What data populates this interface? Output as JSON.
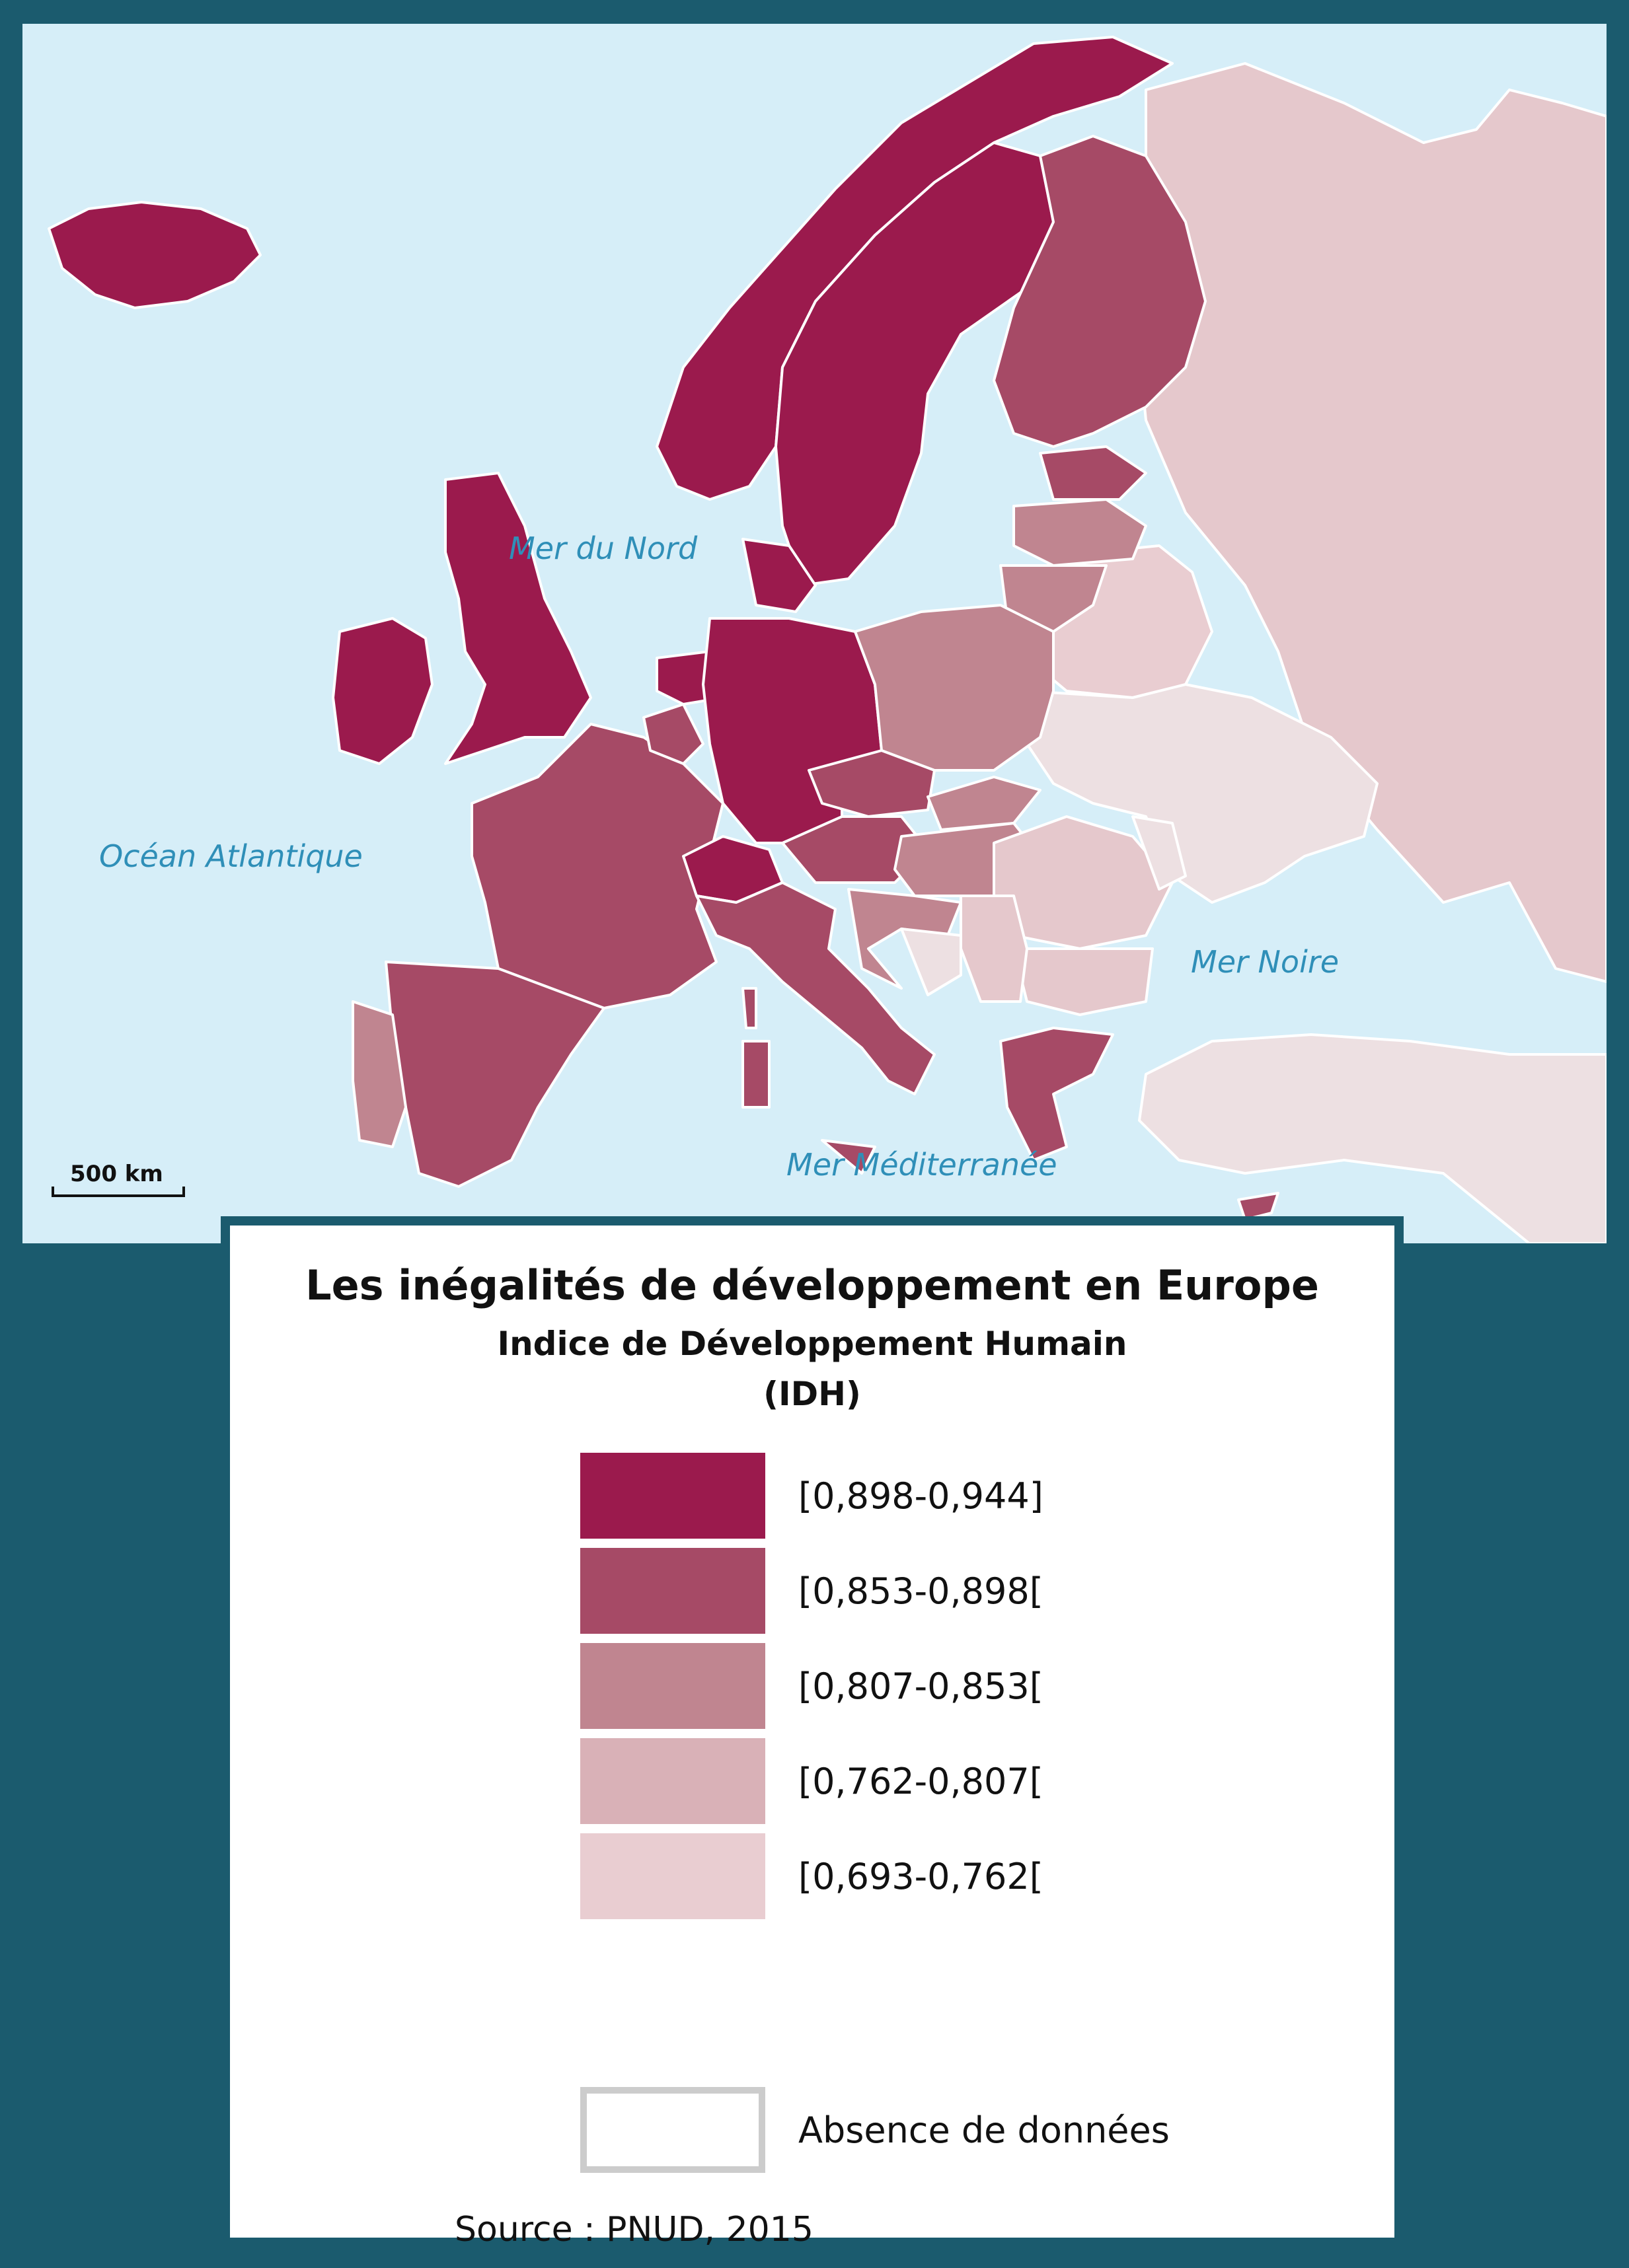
{
  "map": {
    "seas": {
      "atlantic": "Océan Atlantique",
      "north_sea": "Mer du Nord",
      "black_sea": "Mer Noire",
      "mediterranean": "Mer Méditerranée"
    },
    "scale_label": "500 km"
  },
  "legend": {
    "title": "Les inégalités de développement en Europe",
    "subtitle": "Indice de Développement Humain",
    "unit": "(IDH)",
    "classes": [
      {
        "label": "[0,898-0,944]",
        "color": "#9b1a4d"
      },
      {
        "label": "[0,853-0,898[",
        "color": "#a64a66"
      },
      {
        "label": "[0,807-0,853[",
        "color": "#c08590"
      },
      {
        "label": "[0,762-0,807[",
        "color": "#d9b1b7"
      },
      {
        "label": "[0,693-0,762[",
        "color": "#e9cdd1"
      }
    ],
    "no_data_label": "Absence de données",
    "source": "Source : PNUD, 2015"
  }
}
